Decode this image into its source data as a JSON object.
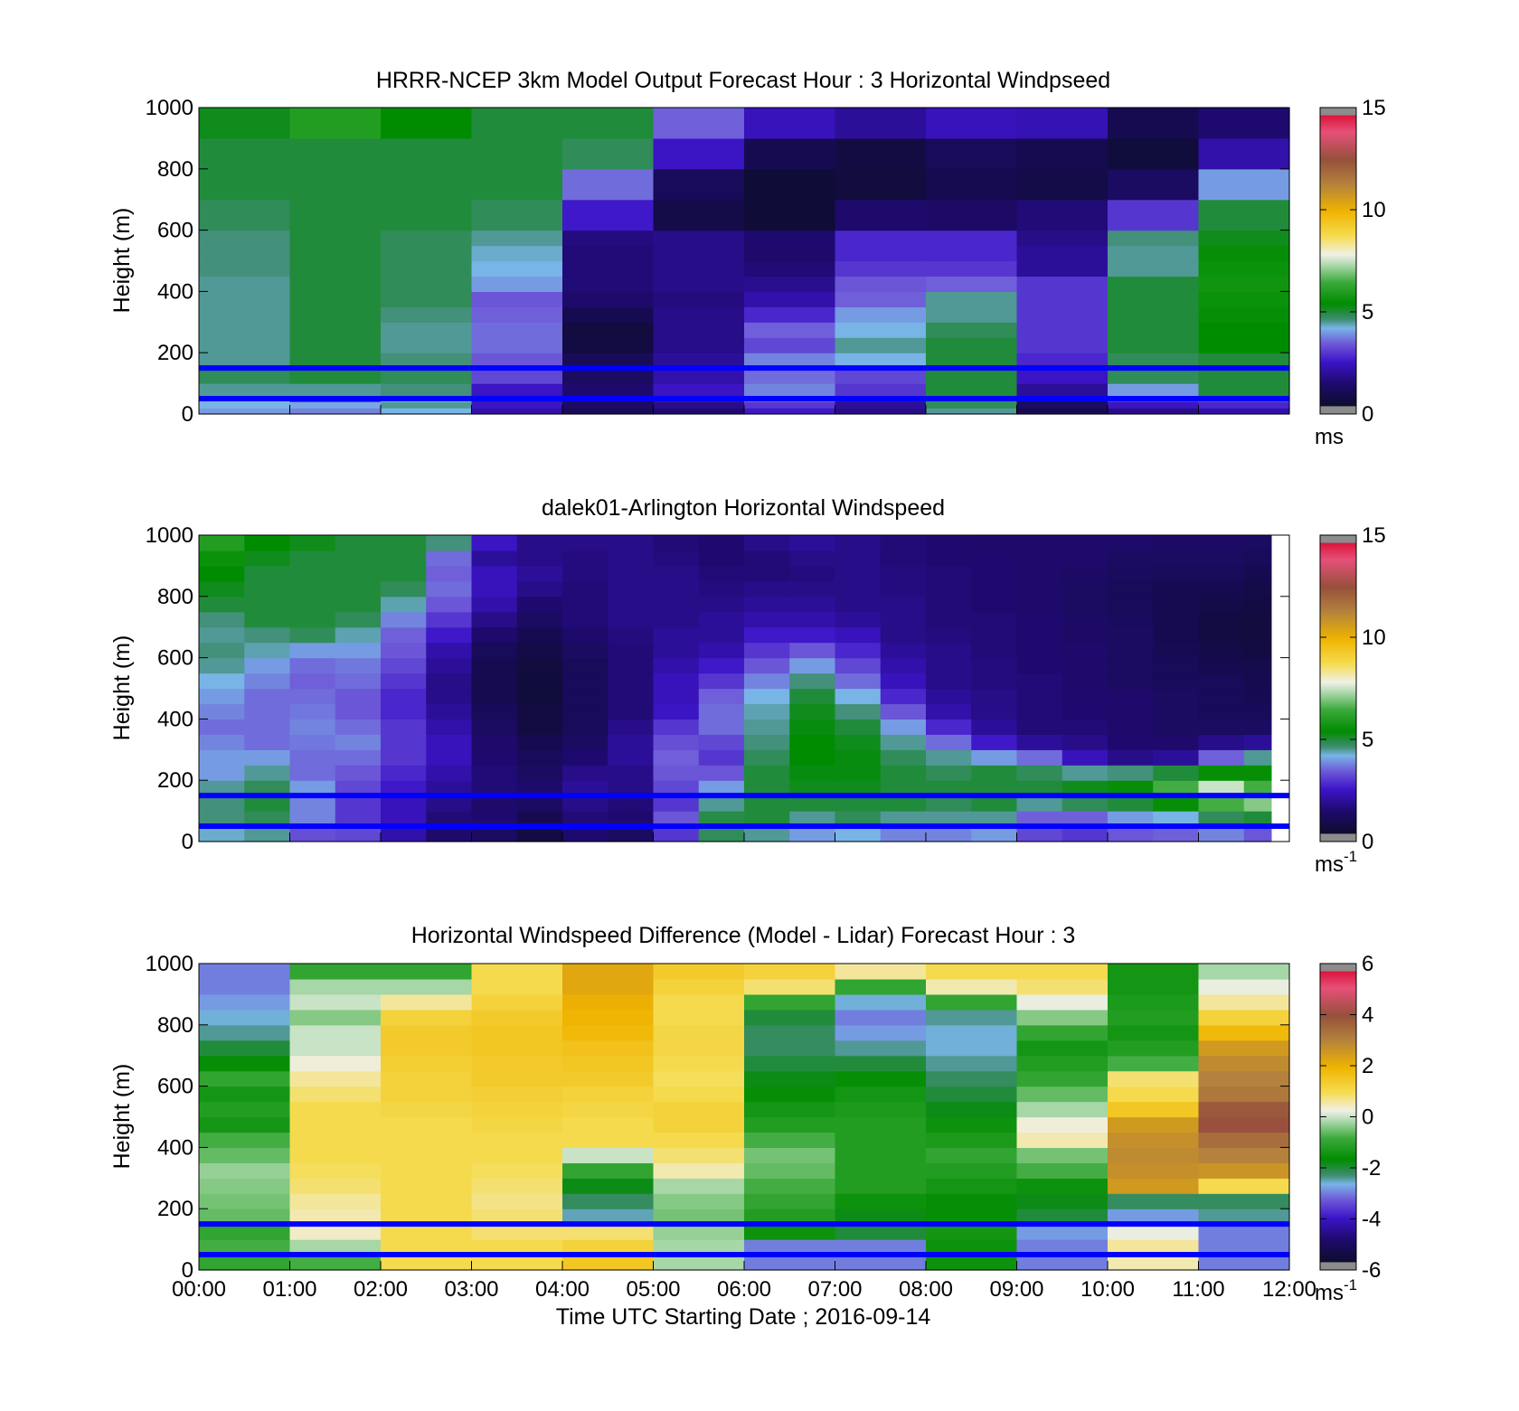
{
  "figure": {
    "xlabel": "Time UTC  Starting Date ; 2016-09-14",
    "x_tick_labels": [
      "00:00",
      "01:00",
      "02:00",
      "03:00",
      "04:00",
      "05:00",
      "06:00",
      "07:00",
      "08:00",
      "09:00",
      "10:00",
      "11:00",
      "12:00"
    ],
    "xlim": [
      0,
      12
    ],
    "x_unit": "hours UTC"
  },
  "chart_data": [
    {
      "type": "heatmap",
      "title": "HRRR-NCEP 3km Model Output   Forecast Hour : 3 Horizontal Windpseed",
      "ylabel": "Height (m)",
      "ylim": [
        0,
        1000
      ],
      "y_ticks": [
        "0",
        "200",
        "400",
        "600",
        "800",
        "1000"
      ],
      "colorbar": {
        "min": 0,
        "max": 15,
        "ticks": [
          "0",
          "5",
          "10",
          "15"
        ],
        "unit": "ms",
        "unit_sup": ""
      },
      "x_edges": [
        0,
        1,
        2,
        3,
        4,
        5,
        6,
        7,
        8,
        9,
        10,
        11,
        12
      ],
      "y_edges": [
        0,
        20,
        40,
        60,
        100,
        150,
        200,
        250,
        300,
        350,
        400,
        450,
        500,
        550,
        600,
        700,
        800,
        900,
        1000
      ],
      "values": [
        [
          4.0,
          3.8,
          4.2,
          2.2,
          1.0,
          1.5,
          2.6,
          1.8,
          4.5,
          0.8,
          1.8,
          2.2
        ],
        [
          4.2,
          4.1,
          4.5,
          2.5,
          1.3,
          1.8,
          3.0,
          2.0,
          4.8,
          1.2,
          2.5,
          2.8
        ],
        [
          4.2,
          3.0,
          4.2,
          2.4,
          1.2,
          2.3,
          3.5,
          2.2,
          4.8,
          1.4,
          3.0,
          3.2
        ],
        [
          4.5,
          4.5,
          4.6,
          2.5,
          1.5,
          2.5,
          3.8,
          3.0,
          5.0,
          2.0,
          4.0,
          5.0
        ],
        [
          4.8,
          5.0,
          4.8,
          3.2,
          1.2,
          2.2,
          3.6,
          3.2,
          5.0,
          2.5,
          4.8,
          5.0
        ],
        [
          4.5,
          5.0,
          4.6,
          3.4,
          1.0,
          2.0,
          3.8,
          4.2,
          5.0,
          2.8,
          4.8,
          5.0
        ],
        [
          4.5,
          5.0,
          4.5,
          3.6,
          0.5,
          1.8,
          3.2,
          4.5,
          5.0,
          3.0,
          5.0,
          5.4
        ],
        [
          4.5,
          5.0,
          4.5,
          3.6,
          0.4,
          1.8,
          3.5,
          4.2,
          4.8,
          3.0,
          5.0,
          5.4
        ],
        [
          4.5,
          5.0,
          4.6,
          3.5,
          0.8,
          1.8,
          2.8,
          4.0,
          4.5,
          3.0,
          5.0,
          5.5
        ],
        [
          4.5,
          5.0,
          4.8,
          3.4,
          1.4,
          1.7,
          2.2,
          3.5,
          4.5,
          3.0,
          5.0,
          5.6
        ],
        [
          4.5,
          5.0,
          4.8,
          4.0,
          1.6,
          1.8,
          1.9,
          3.4,
          3.5,
          3.0,
          5.0,
          5.7
        ],
        [
          4.6,
          5.0,
          4.8,
          4.2,
          1.6,
          1.8,
          1.6,
          3.0,
          3.0,
          2.0,
          4.5,
          5.6
        ],
        [
          4.6,
          5.0,
          4.8,
          4.3,
          1.6,
          1.8,
          1.4,
          2.8,
          2.8,
          2.0,
          4.5,
          5.5
        ],
        [
          4.6,
          5.0,
          4.8,
          4.5,
          1.7,
          1.8,
          1.5,
          2.8,
          2.8,
          1.8,
          4.6,
          5.2
        ],
        [
          4.8,
          5.0,
          5.0,
          4.8,
          2.6,
          0.6,
          0.2,
          1.4,
          1.3,
          1.6,
          3.0,
          5.0
        ],
        [
          5.0,
          5.0,
          5.0,
          5.0,
          3.6,
          1.0,
          0.2,
          0.4,
          0.8,
          0.6,
          1.2,
          4.0
        ],
        [
          5.0,
          5.0,
          5.0,
          5.0,
          4.8,
          2.5,
          0.8,
          0.5,
          1.0,
          0.8,
          0.3,
          2.2
        ],
        [
          5.2,
          6.0,
          5.4,
          5.0,
          5.0,
          3.5,
          2.4,
          2.0,
          2.4,
          2.3,
          0.8,
          1.5
        ]
      ],
      "hlines": [
        50,
        150
      ],
      "hline_color": "#0000ff"
    },
    {
      "type": "heatmap",
      "title": "dalek01-Arlington  Horizontal Windspeed",
      "ylabel": "Height (m)",
      "ylim": [
        0,
        1000
      ],
      "y_ticks": [
        "0",
        "200",
        "400",
        "600",
        "800",
        "1000"
      ],
      "colorbar": {
        "min": 0,
        "max": 15,
        "ticks": [
          "0",
          "5",
          "10",
          "15"
        ],
        "unit": "ms",
        "unit_sup": "-1"
      },
      "x_edges": [
        0,
        0.5,
        1,
        1.5,
        2,
        2.5,
        3,
        3.5,
        4,
        4.5,
        5,
        5.5,
        6,
        6.5,
        7,
        7.5,
        8,
        8.5,
        9,
        9.5,
        10,
        10.5,
        11,
        11.5,
        11.8
      ],
      "y_edges": [
        0,
        50,
        100,
        150,
        200,
        250,
        300,
        350,
        400,
        450,
        500,
        550,
        600,
        650,
        700,
        750,
        800,
        850,
        900,
        950,
        1000
      ],
      "values": [
        [
          4.3,
          4.5,
          3.3,
          3.2,
          2.2,
          1.4,
          1.2,
          0.5,
          1.5,
          1.2,
          3.0,
          4.8,
          4.5,
          4.0,
          4.2,
          3.8,
          3.8,
          4.0,
          3.2,
          3.0,
          3.4,
          3.5,
          3.8,
          3.4
        ],
        [
          4.6,
          4.8,
          3.8,
          3.0,
          2.4,
          1.6,
          1.5,
          0.8,
          1.6,
          1.5,
          3.4,
          4.9,
          5.0,
          4.5,
          4.8,
          4.5,
          4.5,
          4.5,
          3.5,
          3.5,
          4.0,
          4.2,
          4.8,
          5.0
        ],
        [
          4.6,
          5.0,
          3.8,
          3.0,
          2.4,
          1.8,
          1.4,
          1.2,
          1.8,
          1.6,
          3.0,
          4.5,
          5.0,
          5.0,
          5.0,
          5.0,
          4.8,
          5.0,
          4.5,
          4.8,
          5.0,
          5.5,
          6.5,
          7.0
        ],
        [
          4.5,
          4.8,
          4.0,
          3.2,
          2.6,
          2.0,
          1.6,
          1.4,
          2.0,
          1.8,
          3.2,
          4.0,
          5.0,
          5.2,
          5.2,
          5.0,
          5.0,
          5.0,
          5.0,
          5.2,
          5.5,
          6.5,
          7.5,
          6.5
        ],
        [
          4.0,
          4.5,
          3.6,
          3.4,
          2.8,
          2.2,
          1.6,
          1.2,
          1.8,
          1.8,
          3.4,
          3.4,
          5.0,
          5.3,
          5.3,
          5.0,
          4.8,
          5.0,
          4.8,
          4.5,
          4.6,
          5.0,
          5.5,
          5.5
        ],
        [
          4.0,
          4.0,
          3.6,
          3.6,
          3.0,
          2.4,
          1.5,
          1.0,
          1.5,
          2.0,
          3.5,
          3.0,
          4.8,
          5.4,
          5.3,
          4.8,
          4.5,
          4.0,
          3.6,
          2.4,
          1.8,
          2.0,
          3.5,
          4.5
        ],
        [
          3.8,
          3.6,
          3.7,
          3.8,
          3.0,
          2.4,
          1.4,
          0.8,
          1.2,
          2.0,
          3.3,
          3.2,
          4.6,
          5.4,
          5.2,
          4.5,
          3.6,
          2.6,
          2.0,
          1.8,
          1.5,
          1.4,
          1.8,
          2.0
        ],
        [
          3.6,
          3.6,
          3.8,
          3.6,
          3.0,
          2.2,
          1.2,
          0.5,
          1.0,
          1.8,
          3.0,
          3.6,
          4.5,
          5.3,
          5.0,
          4.0,
          2.8,
          2.0,
          1.6,
          1.6,
          1.4,
          1.2,
          1.2,
          1.2
        ],
        [
          3.8,
          3.6,
          3.7,
          3.4,
          2.8,
          2.0,
          1.0,
          0.5,
          1.0,
          1.6,
          2.5,
          3.6,
          4.4,
          5.2,
          4.6,
          3.4,
          2.2,
          1.8,
          1.6,
          1.5,
          1.4,
          1.2,
          1.0,
          1.0
        ],
        [
          4.0,
          3.6,
          3.6,
          3.4,
          2.8,
          1.8,
          0.8,
          0.3,
          1.0,
          1.6,
          2.4,
          3.5,
          4.2,
          5.0,
          4.2,
          2.8,
          2.0,
          1.8,
          1.6,
          1.5,
          1.4,
          1.2,
          1.0,
          0.9
        ],
        [
          4.2,
          3.8,
          3.5,
          3.6,
          3.0,
          1.8,
          0.8,
          0.3,
          1.0,
          1.6,
          2.4,
          3.0,
          3.8,
          4.6,
          3.6,
          2.4,
          1.8,
          1.7,
          1.6,
          1.4,
          1.2,
          1.0,
          1.0,
          0.8
        ],
        [
          4.5,
          4.0,
          3.6,
          3.7,
          3.2,
          2.0,
          0.8,
          0.4,
          1.0,
          1.6,
          2.2,
          2.6,
          3.4,
          4.0,
          3.2,
          2.2,
          1.8,
          1.7,
          1.5,
          1.4,
          1.2,
          1.0,
          0.8,
          0.7
        ],
        [
          4.6,
          4.4,
          4.0,
          4.0,
          3.4,
          2.2,
          1.0,
          0.6,
          1.2,
          1.6,
          2.0,
          2.2,
          3.0,
          3.4,
          2.8,
          2.0,
          1.8,
          1.6,
          1.5,
          1.4,
          1.2,
          0.9,
          0.6,
          0.5
        ],
        [
          4.5,
          4.6,
          4.8,
          4.4,
          3.5,
          2.6,
          1.4,
          0.8,
          1.4,
          1.7,
          2.0,
          2.0,
          2.6,
          2.6,
          2.4,
          1.8,
          1.7,
          1.6,
          1.5,
          1.3,
          1.2,
          0.8,
          0.5,
          0.4
        ],
        [
          4.6,
          5.0,
          5.0,
          4.8,
          3.8,
          3.0,
          1.8,
          1.2,
          1.6,
          1.8,
          1.8,
          2.0,
          2.2,
          2.2,
          2.0,
          1.8,
          1.6,
          1.6,
          1.5,
          1.3,
          1.1,
          0.8,
          0.5,
          0.4
        ],
        [
          5.0,
          5.0,
          5.0,
          5.0,
          4.4,
          3.4,
          2.2,
          1.5,
          1.6,
          1.8,
          1.8,
          1.8,
          2.0,
          2.0,
          1.8,
          1.8,
          1.6,
          1.5,
          1.4,
          1.2,
          1.0,
          0.8,
          0.6,
          0.5
        ],
        [
          5.2,
          5.0,
          5.0,
          5.0,
          4.8,
          3.6,
          2.4,
          1.8,
          1.6,
          1.8,
          1.8,
          1.7,
          1.8,
          1.8,
          1.8,
          1.7,
          1.6,
          1.5,
          1.4,
          1.2,
          1.0,
          0.8,
          0.8,
          0.6
        ],
        [
          5.4,
          5.0,
          5.0,
          5.0,
          5.0,
          3.5,
          2.4,
          2.0,
          1.7,
          1.8,
          1.8,
          1.6,
          1.6,
          1.7,
          1.8,
          1.7,
          1.6,
          1.5,
          1.4,
          1.3,
          1.1,
          1.0,
          1.0,
          0.8
        ],
        [
          5.6,
          5.2,
          5.0,
          5.0,
          5.0,
          3.6,
          2.0,
          1.8,
          1.7,
          1.8,
          1.7,
          1.5,
          1.6,
          1.8,
          1.8,
          1.6,
          1.5,
          1.5,
          1.4,
          1.4,
          1.2,
          1.2,
          1.2,
          1.0
        ],
        [
          6.0,
          5.4,
          5.2,
          5.0,
          5.0,
          4.6,
          2.5,
          1.8,
          1.8,
          1.8,
          1.6,
          1.5,
          1.8,
          2.0,
          1.8,
          1.6,
          1.5,
          1.4,
          1.4,
          1.4,
          1.4,
          1.3,
          1.3,
          1.2
        ]
      ],
      "hlines": [
        50,
        150
      ],
      "hline_color": "#0000ff"
    },
    {
      "type": "heatmap",
      "title": "Horizontal Windspeed Difference (Model - Lidar) Forecast Hour : 3",
      "ylabel": "Height (m)",
      "ylim": [
        0,
        1000
      ],
      "y_ticks": [
        "0",
        "200",
        "400",
        "600",
        "800",
        "1000"
      ],
      "colorbar": {
        "min": -6,
        "max": 6,
        "ticks": [
          "-6",
          "-4",
          "-2",
          "0",
          "2",
          "4",
          "6"
        ],
        "unit": "ms",
        "unit_sup": "-1"
      },
      "x_edges": [
        0,
        1,
        2,
        3,
        4,
        5,
        6,
        7,
        8,
        9,
        10,
        11,
        12
      ],
      "y_edges": [
        0,
        50,
        100,
        150,
        200,
        250,
        300,
        350,
        400,
        450,
        500,
        550,
        600,
        650,
        700,
        750,
        800,
        850,
        900,
        950,
        1000
      ],
      "values": [
        [
          -1.0,
          -0.8,
          1.0,
          1.0,
          1.5,
          -0.2,
          -3.0,
          -3.0,
          -1.5,
          -3.0,
          0.5,
          -3.0
        ],
        [
          -0.8,
          -0.2,
          1.0,
          1.0,
          1.2,
          -0.2,
          -3.0,
          -3.0,
          -1.5,
          -3.0,
          0.6,
          -3.0
        ],
        [
          -1.0,
          0.4,
          1.0,
          0.8,
          0.8,
          -0.3,
          -1.5,
          -2.0,
          -1.4,
          -2.8,
          0.2,
          -3.0
        ],
        [
          -0.6,
          0.5,
          1.0,
          0.8,
          -2.5,
          -0.5,
          -1.2,
          -1.8,
          -1.6,
          -2.0,
          -2.8,
          -2.4
        ],
        [
          -0.5,
          0.6,
          1.0,
          0.7,
          -2.2,
          -0.4,
          -1.0,
          -1.5,
          -1.6,
          -1.8,
          -2.2,
          -2.2
        ],
        [
          -0.4,
          0.8,
          1.0,
          0.8,
          -1.8,
          -0.2,
          -0.8,
          -1.2,
          -1.4,
          -1.5,
          2.5,
          1.0
        ],
        [
          -0.3,
          0.9,
          1.0,
          0.9,
          -1.0,
          0.5,
          -0.6,
          -1.2,
          -1.2,
          -0.8,
          2.7,
          2.6
        ],
        [
          -0.6,
          1.0,
          1.0,
          1.0,
          0.0,
          0.8,
          -0.5,
          -1.2,
          -1.0,
          -0.5,
          2.8,
          3.0
        ],
        [
          -0.8,
          1.0,
          1.0,
          1.0,
          1.0,
          1.0,
          -0.8,
          -1.2,
          -1.3,
          0.5,
          2.7,
          3.4
        ],
        [
          -1.4,
          1.0,
          1.0,
          1.1,
          1.0,
          1.2,
          -1.2,
          -1.2,
          -1.5,
          0.3,
          2.5,
          4.0
        ],
        [
          -1.2,
          1.0,
          1.1,
          1.2,
          1.1,
          1.2,
          -1.4,
          -1.3,
          -1.8,
          -0.2,
          1.5,
          3.8
        ],
        [
          -1.4,
          0.8,
          1.2,
          1.3,
          1.2,
          1.0,
          -1.6,
          -1.4,
          -2.0,
          -0.6,
          1.0,
          3.2
        ],
        [
          -1.0,
          0.6,
          1.2,
          1.4,
          1.4,
          0.9,
          -1.8,
          -1.6,
          -2.2,
          -1.0,
          0.8,
          3.0
        ],
        [
          -1.6,
          0.3,
          1.3,
          1.4,
          1.5,
          1.0,
          -2.0,
          -2.0,
          -2.4,
          -1.2,
          -0.8,
          2.8
        ],
        [
          -2.0,
          0.0,
          1.4,
          1.5,
          1.6,
          1.1,
          -2.2,
          -2.4,
          -2.6,
          -1.4,
          -1.2,
          2.5
        ],
        [
          -2.4,
          0.0,
          1.4,
          1.5,
          1.8,
          1.1,
          -2.2,
          -2.8,
          -2.6,
          -1.0,
          -1.4,
          1.8
        ],
        [
          -2.6,
          -0.4,
          1.2,
          1.4,
          1.9,
          1.0,
          -2.0,
          -3.0,
          -2.4,
          -0.4,
          -1.2,
          1.2
        ],
        [
          -2.8,
          0.0,
          0.6,
          1.2,
          2.0,
          1.0,
          -1.0,
          -2.6,
          -1.0,
          0.2,
          -1.3,
          0.6
        ],
        [
          -3.0,
          -0.2,
          -0.2,
          1.0,
          2.2,
          1.2,
          0.8,
          -1.0,
          0.5,
          0.8,
          -1.4,
          0.2
        ],
        [
          -3.0,
          -1.0,
          -1.0,
          1.0,
          2.2,
          1.4,
          1.2,
          0.6,
          1.0,
          1.0,
          -1.4,
          -0.2
        ]
      ],
      "hlines": [
        50,
        150
      ],
      "hline_color": "#0000ff"
    }
  ]
}
